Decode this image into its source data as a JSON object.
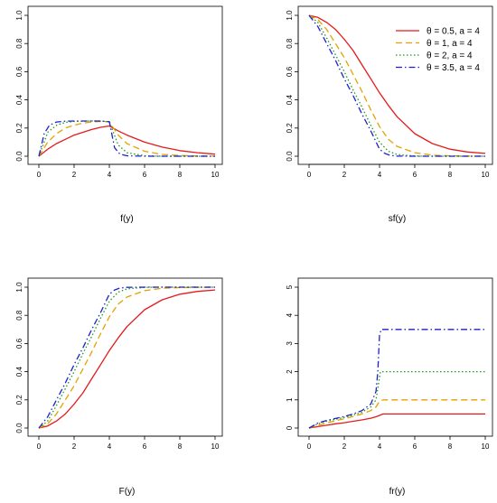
{
  "legend": [
    {
      "label": "θ = 0.5, a = 4",
      "color": "#e41a1c",
      "dash": "solid"
    },
    {
      "label": "θ = 1, a = 4",
      "color": "#e6a100",
      "dash": "dashed"
    },
    {
      "label": "θ = 2, a = 4",
      "color": "#1a9a1a",
      "dash": "dotted"
    },
    {
      "label": "θ = 3.5, a = 4",
      "color": "#1f1fd0",
      "dash": "dotdash"
    }
  ],
  "chart_data": [
    {
      "type": "line",
      "xlabel": "f(y)",
      "ylabel": "",
      "xlim": [
        0,
        10
      ],
      "ylim": [
        0,
        1.0
      ],
      "xticks": [
        0,
        2,
        4,
        6,
        8,
        10
      ],
      "yticks": [
        0.0,
        0.2,
        0.4,
        0.6,
        0.8,
        1.0
      ],
      "ytick_labels": [
        "0.0",
        "0.2",
        "0.4",
        "0.6",
        "0.8",
        "1.0"
      ],
      "legend": false,
      "series": [
        {
          "name": "θ = 0.5, a = 4",
          "x": [
            0,
            0.5,
            1,
            1.5,
            2,
            2.5,
            3,
            3.5,
            4,
            4.5,
            5,
            6,
            7,
            8,
            9,
            10
          ],
          "y": [
            0.0,
            0.05,
            0.09,
            0.12,
            0.15,
            0.17,
            0.19,
            0.205,
            0.215,
            0.18,
            0.15,
            0.1,
            0.065,
            0.04,
            0.025,
            0.015
          ]
        },
        {
          "name": "θ = 1, a = 4",
          "x": [
            0,
            0.5,
            1,
            1.5,
            2,
            2.5,
            3,
            3.5,
            4,
            4.5,
            5,
            6,
            7,
            8,
            9,
            10
          ],
          "y": [
            0.0,
            0.1,
            0.16,
            0.2,
            0.22,
            0.235,
            0.243,
            0.247,
            0.245,
            0.15,
            0.09,
            0.035,
            0.013,
            0.005,
            0.002,
            0.001
          ]
        },
        {
          "name": "θ = 2, a = 4",
          "x": [
            0,
            0.5,
            1,
            1.5,
            2,
            2.5,
            3,
            3.5,
            4,
            4.5,
            5,
            6,
            7,
            8,
            9,
            10
          ],
          "y": [
            0.0,
            0.17,
            0.22,
            0.24,
            0.247,
            0.249,
            0.25,
            0.25,
            0.245,
            0.08,
            0.025,
            0.003,
            0.0,
            0.0,
            0.0,
            0.0
          ]
        },
        {
          "name": "θ = 3.5, a = 4",
          "x": [
            0,
            0.3,
            0.6,
            1,
            1.5,
            2,
            2.5,
            3,
            3.5,
            4,
            4.3,
            4.6,
            5,
            6,
            7,
            8,
            9,
            10
          ],
          "y": [
            0.0,
            0.16,
            0.22,
            0.243,
            0.249,
            0.25,
            0.25,
            0.25,
            0.25,
            0.245,
            0.06,
            0.015,
            0.003,
            0.0,
            0.0,
            0.0,
            0.0,
            0.0
          ]
        }
      ]
    },
    {
      "type": "line",
      "xlabel": "sf(y)",
      "ylabel": "",
      "xlim": [
        0,
        10
      ],
      "ylim": [
        0,
        1.0
      ],
      "xticks": [
        0,
        2,
        4,
        6,
        8,
        10
      ],
      "yticks": [
        0.0,
        0.2,
        0.4,
        0.6,
        0.8,
        1.0
      ],
      "ytick_labels": [
        "0.0",
        "0.2",
        "0.4",
        "0.6",
        "0.8",
        "1.0"
      ],
      "legend": true,
      "legend_position": "top-right",
      "series": [
        {
          "name": "θ = 0.5, a = 4",
          "x": [
            0,
            0.5,
            1,
            1.5,
            2,
            2.5,
            3,
            3.5,
            4,
            4.5,
            5,
            6,
            7,
            8,
            9,
            10
          ],
          "y": [
            1.0,
            0.985,
            0.95,
            0.9,
            0.83,
            0.75,
            0.65,
            0.55,
            0.45,
            0.36,
            0.28,
            0.16,
            0.09,
            0.05,
            0.03,
            0.02
          ]
        },
        {
          "name": "θ = 1, a = 4",
          "x": [
            0,
            0.5,
            1,
            1.5,
            2,
            2.5,
            3,
            3.5,
            4,
            4.5,
            5,
            6,
            7,
            8,
            9,
            10
          ],
          "y": [
            1.0,
            0.97,
            0.9,
            0.8,
            0.7,
            0.58,
            0.46,
            0.33,
            0.21,
            0.12,
            0.07,
            0.025,
            0.008,
            0.003,
            0.001,
            0.0
          ]
        },
        {
          "name": "θ = 2, a = 4",
          "x": [
            0,
            0.5,
            1,
            1.5,
            2,
            2.5,
            3,
            3.5,
            4,
            4.5,
            5,
            6,
            7,
            8,
            9,
            10
          ],
          "y": [
            1.0,
            0.95,
            0.84,
            0.72,
            0.6,
            0.47,
            0.35,
            0.22,
            0.1,
            0.035,
            0.012,
            0.001,
            0.0,
            0.0,
            0.0,
            0.0
          ]
        },
        {
          "name": "θ = 3.5, a = 4",
          "x": [
            0,
            0.5,
            1,
            1.5,
            2,
            2.5,
            3,
            3.5,
            4,
            4.3,
            4.6,
            5,
            6,
            7,
            8,
            9,
            10
          ],
          "y": [
            1.0,
            0.92,
            0.8,
            0.68,
            0.55,
            0.43,
            0.3,
            0.18,
            0.05,
            0.02,
            0.006,
            0.001,
            0.0,
            0.0,
            0.0,
            0.0,
            0.0
          ]
        }
      ]
    },
    {
      "type": "line",
      "xlabel": "F(y)",
      "ylabel": "",
      "xlim": [
        0,
        10
      ],
      "ylim": [
        0,
        1.0
      ],
      "xticks": [
        0,
        2,
        4,
        6,
        8,
        10
      ],
      "yticks": [
        0.0,
        0.2,
        0.4,
        0.6,
        0.8,
        1.0
      ],
      "ytick_labels": [
        "0.0",
        "0.2",
        "0.4",
        "0.6",
        "0.8",
        "1.0"
      ],
      "legend": false,
      "series": [
        {
          "name": "θ = 0.5, a = 4",
          "x": [
            0,
            0.5,
            1,
            1.5,
            2,
            2.5,
            3,
            3.5,
            4,
            4.5,
            5,
            6,
            7,
            8,
            9,
            10
          ],
          "y": [
            0.0,
            0.015,
            0.05,
            0.1,
            0.17,
            0.25,
            0.35,
            0.45,
            0.55,
            0.64,
            0.72,
            0.84,
            0.91,
            0.95,
            0.97,
            0.98
          ]
        },
        {
          "name": "θ = 1, a = 4",
          "x": [
            0,
            0.5,
            1,
            1.5,
            2,
            2.5,
            3,
            3.5,
            4,
            4.5,
            5,
            6,
            7,
            8,
            9,
            10
          ],
          "y": [
            0.0,
            0.03,
            0.1,
            0.2,
            0.3,
            0.42,
            0.54,
            0.67,
            0.79,
            0.88,
            0.93,
            0.975,
            0.992,
            0.997,
            0.999,
            1.0
          ]
        },
        {
          "name": "θ = 2, a = 4",
          "x": [
            0,
            0.5,
            1,
            1.5,
            2,
            2.5,
            3,
            3.5,
            4,
            4.5,
            5,
            6,
            7,
            8,
            9,
            10
          ],
          "y": [
            0.0,
            0.05,
            0.16,
            0.28,
            0.4,
            0.53,
            0.65,
            0.78,
            0.9,
            0.965,
            0.988,
            0.999,
            1.0,
            1.0,
            1.0,
            1.0
          ]
        },
        {
          "name": "θ = 3.5, a = 4",
          "x": [
            0,
            0.5,
            1,
            1.5,
            2,
            2.5,
            3,
            3.5,
            4,
            4.3,
            4.6,
            5,
            6,
            7,
            8,
            9,
            10
          ],
          "y": [
            0.0,
            0.08,
            0.2,
            0.32,
            0.45,
            0.57,
            0.7,
            0.82,
            0.95,
            0.98,
            0.994,
            0.999,
            1.0,
            1.0,
            1.0,
            1.0,
            1.0
          ]
        }
      ]
    },
    {
      "type": "line",
      "xlabel": "fr(y)",
      "ylabel": "",
      "xlim": [
        0,
        10
      ],
      "ylim": [
        0,
        5
      ],
      "xticks": [
        0,
        2,
        4,
        6,
        8,
        10
      ],
      "yticks": [
        0,
        1,
        2,
        3,
        4,
        5
      ],
      "ytick_labels": [
        "0",
        "1",
        "2",
        "3",
        "4",
        "5"
      ],
      "legend": false,
      "series": [
        {
          "name": "θ = 0.5, a = 4",
          "x": [
            0,
            0.5,
            1,
            1.5,
            2,
            2.5,
            3,
            3.5,
            3.8,
            4,
            4.2,
            5,
            6,
            7,
            8,
            9,
            10
          ],
          "y": [
            0.0,
            0.05,
            0.1,
            0.15,
            0.19,
            0.24,
            0.29,
            0.35,
            0.4,
            0.45,
            0.5,
            0.5,
            0.5,
            0.5,
            0.5,
            0.5,
            0.5
          ]
        },
        {
          "name": "θ = 1, a = 4",
          "x": [
            0,
            0.5,
            1,
            1.5,
            2,
            2.5,
            3,
            3.5,
            3.8,
            4,
            4.2,
            5,
            6,
            7,
            8,
            9,
            10
          ],
          "y": [
            0.0,
            0.1,
            0.18,
            0.26,
            0.33,
            0.41,
            0.5,
            0.62,
            0.75,
            0.95,
            1.0,
            1.0,
            1.0,
            1.0,
            1.0,
            1.0,
            1.0
          ]
        },
        {
          "name": "θ = 2, a = 4",
          "x": [
            0,
            0.5,
            1,
            1.5,
            2,
            2.5,
            3,
            3.5,
            3.8,
            3.95,
            4.05,
            4.2,
            5,
            6,
            7,
            8,
            9,
            10
          ],
          "y": [
            0.0,
            0.15,
            0.24,
            0.31,
            0.38,
            0.46,
            0.56,
            0.75,
            1.0,
            1.6,
            2.0,
            2.0,
            2.0,
            2.0,
            2.0,
            2.0,
            2.0,
            2.0
          ]
        },
        {
          "name": "θ = 3.5, a = 4",
          "x": [
            0,
            0.5,
            1,
            1.5,
            2,
            2.5,
            3,
            3.5,
            3.8,
            3.9,
            4.0,
            4.1,
            5,
            6,
            7,
            8,
            9,
            10
          ],
          "y": [
            0.0,
            0.18,
            0.27,
            0.34,
            0.41,
            0.5,
            0.62,
            0.85,
            1.3,
            2.0,
            3.3,
            3.5,
            3.5,
            3.5,
            3.5,
            3.5,
            3.5,
            3.5
          ]
        }
      ]
    }
  ]
}
